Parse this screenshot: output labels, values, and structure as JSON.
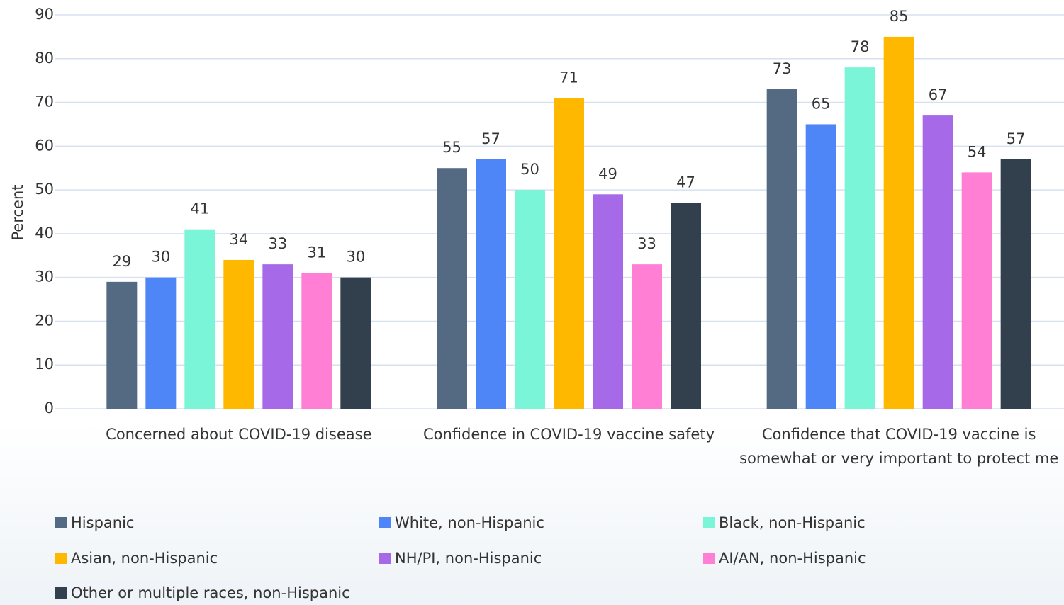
{
  "chart_data": {
    "type": "bar",
    "ylabel": "Percent",
    "categories": [
      "Concerned about COVID-19 disease",
      "Confidence in COVID-19 vaccine safety",
      "Confidence that COVID-19 vaccine is somewhat or very important to protect me"
    ],
    "series": [
      {
        "name": "Hispanic",
        "color": "#536a82",
        "values": [
          29,
          55,
          73
        ]
      },
      {
        "name": "White, non-Hispanic",
        "color": "#4f86f7",
        "values": [
          30,
          57,
          65
        ]
      },
      {
        "name": "Black, non-Hispanic",
        "color": "#7af5d8",
        "values": [
          41,
          50,
          78
        ]
      },
      {
        "name": "Asian, non-Hispanic",
        "color": "#ffb800",
        "values": [
          34,
          71,
          85
        ]
      },
      {
        "name": "NH/PI, non-Hispanic",
        "color": "#a66ae8",
        "values": [
          33,
          49,
          67
        ]
      },
      {
        "name": "AI/AN, non-Hispanic",
        "color": "#ff7fd4",
        "values": [
          31,
          33,
          54
        ]
      },
      {
        "name": "Other or multiple races, non-Hispanic",
        "color": "#323f4d",
        "values": [
          30,
          47,
          57
        ]
      }
    ],
    "ylim": [
      0,
      90
    ],
    "yticks": [
      0,
      10,
      20,
      30,
      40,
      50,
      60,
      70,
      80,
      90
    ],
    "grid": true,
    "legend": "bottom"
  }
}
